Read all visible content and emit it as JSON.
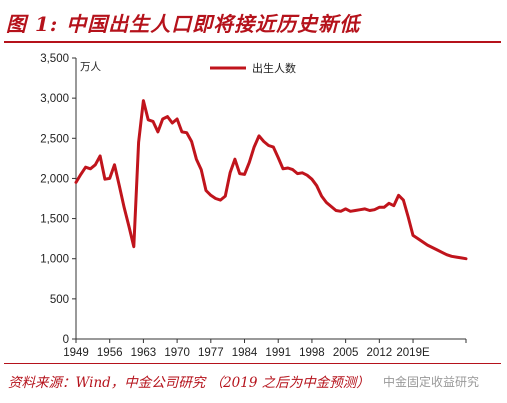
{
  "figure": {
    "title": "图 1:  中国出生人口即将接近历史新低",
    "source": "资料来源：Wind，中金公司研究 （2019 之后为中金预测）",
    "watermark": "中金固定收益研究"
  },
  "chart_data": {
    "type": "line",
    "title": "",
    "xlabel": "",
    "ylabel": "万人",
    "ylim": [
      0,
      3500
    ],
    "yticks": [
      0,
      500,
      1000,
      1500,
      2000,
      2500,
      3000,
      3500
    ],
    "ytick_labels": [
      "0",
      "500",
      "1,000",
      "1,500",
      "2,000",
      "2,500",
      "3,000",
      "3,500"
    ],
    "xlim": [
      1949,
      2030
    ],
    "xticks": [
      1949,
      1956,
      1963,
      1970,
      1977,
      1984,
      1991,
      1998,
      2005,
      2012,
      2019
    ],
    "xtick_labels": [
      "1949",
      "1956",
      "1963",
      "1970",
      "1977",
      "1984",
      "1991",
      "1998",
      "2005",
      "2012",
      "2019E"
    ],
    "grid": false,
    "legend": "top-center",
    "color": "#c0141c",
    "series": [
      {
        "name": "出生人数",
        "x": [
          1949,
          1950,
          1951,
          1952,
          1953,
          1954,
          1955,
          1956,
          1957,
          1958,
          1959,
          1960,
          1961,
          1962,
          1963,
          1964,
          1965,
          1966,
          1967,
          1968,
          1969,
          1970,
          1971,
          1972,
          1973,
          1974,
          1975,
          1976,
          1977,
          1978,
          1979,
          1980,
          1981,
          1982,
          1983,
          1984,
          1985,
          1986,
          1987,
          1988,
          1989,
          1990,
          1991,
          1992,
          1993,
          1994,
          1995,
          1996,
          1997,
          1998,
          1999,
          2000,
          2001,
          2002,
          2003,
          2004,
          2005,
          2006,
          2007,
          2008,
          2009,
          2010,
          2011,
          2012,
          2013,
          2014,
          2015,
          2016,
          2017,
          2018,
          2019,
          2020,
          2021,
          2022,
          2023,
          2024,
          2025,
          2026,
          2027,
          2028,
          2029,
          2030
        ],
        "values": [
          1950,
          2050,
          2140,
          2120,
          2170,
          2280,
          1990,
          2000,
          2170,
          1910,
          1640,
          1400,
          1150,
          2450,
          2970,
          2730,
          2710,
          2580,
          2740,
          2770,
          2690,
          2740,
          2580,
          2570,
          2460,
          2240,
          2110,
          1850,
          1790,
          1750,
          1730,
          1780,
          2070,
          2240,
          2060,
          2050,
          2200,
          2390,
          2530,
          2460,
          2410,
          2390,
          2260,
          2120,
          2130,
          2110,
          2060,
          2070,
          2040,
          1990,
          1910,
          1780,
          1700,
          1650,
          1600,
          1590,
          1620,
          1590,
          1600,
          1610,
          1620,
          1600,
          1610,
          1640,
          1640,
          1690,
          1660,
          1790,
          1730,
          1520,
          1290,
          1250,
          1210,
          1170,
          1140,
          1110,
          1080,
          1050,
          1030,
          1020,
          1010,
          1000
        ]
      }
    ]
  }
}
